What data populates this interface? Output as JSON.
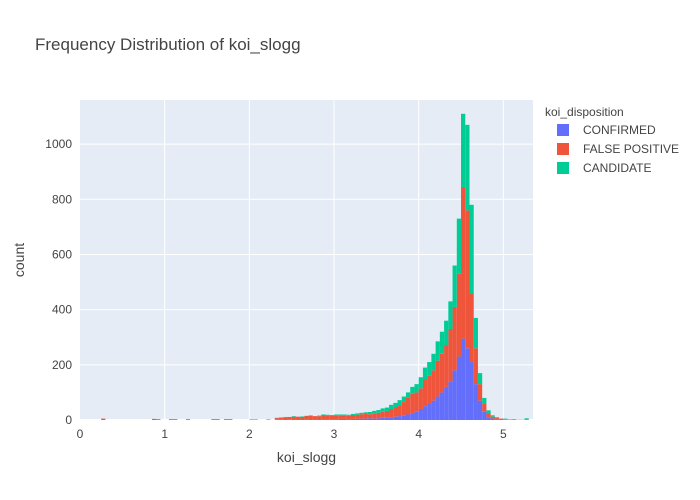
{
  "chart_data": {
    "type": "histogram",
    "title": "Frequency Distribution of koi_slogg",
    "xlabel": "koi_slogg",
    "ylabel": "count",
    "barmode": "stack",
    "xlim": [
      0,
      5.35
    ],
    "ylim": [
      0,
      1160
    ],
    "x_ticks": [
      0,
      1,
      2,
      3,
      4,
      5
    ],
    "y_ticks": [
      0,
      200,
      400,
      600,
      800,
      1000
    ],
    "bin_width": 0.05,
    "grid": true,
    "plot_background": "#e5ecf6",
    "legend": {
      "title": "koi_disposition",
      "placement": "right"
    },
    "series": [
      {
        "name": "CONFIRMED",
        "color": "#636efa",
        "points": [
          [
            2.3,
            1
          ],
          [
            2.35,
            1
          ],
          [
            2.4,
            2
          ],
          [
            2.45,
            1
          ],
          [
            2.5,
            2
          ],
          [
            2.55,
            2
          ],
          [
            2.6,
            2
          ],
          [
            2.65,
            3
          ],
          [
            2.7,
            2
          ],
          [
            2.75,
            3
          ],
          [
            2.8,
            2
          ],
          [
            2.85,
            3
          ],
          [
            2.9,
            3
          ],
          [
            2.95,
            3
          ],
          [
            3.0,
            3
          ],
          [
            3.05,
            4
          ],
          [
            3.1,
            4
          ],
          [
            3.15,
            3
          ],
          [
            3.2,
            4
          ],
          [
            3.25,
            4
          ],
          [
            3.3,
            5
          ],
          [
            3.35,
            5
          ],
          [
            3.4,
            6
          ],
          [
            3.45,
            5
          ],
          [
            3.5,
            6
          ],
          [
            3.55,
            8
          ],
          [
            3.6,
            8
          ],
          [
            3.65,
            10
          ],
          [
            3.7,
            12
          ],
          [
            3.75,
            14
          ],
          [
            3.8,
            15
          ],
          [
            3.85,
            20
          ],
          [
            3.9,
            25
          ],
          [
            3.95,
            30
          ],
          [
            4.0,
            40
          ],
          [
            4.05,
            50
          ],
          [
            4.1,
            60
          ],
          [
            4.15,
            70
          ],
          [
            4.2,
            85
          ],
          [
            4.25,
            100
          ],
          [
            4.3,
            120
          ],
          [
            4.35,
            140
          ],
          [
            4.4,
            180
          ],
          [
            4.45,
            230
          ],
          [
            4.5,
            295
          ],
          [
            4.55,
            260
          ],
          [
            4.6,
            210
          ],
          [
            4.65,
            130
          ],
          [
            4.7,
            70
          ],
          [
            4.75,
            30
          ],
          [
            4.8,
            10
          ],
          [
            4.85,
            5
          ],
          [
            4.9,
            3
          ],
          [
            4.95,
            2
          ],
          [
            5.0,
            1
          ],
          [
            5.1,
            1
          ]
        ]
      },
      {
        "name": "FALSE POSITIVE",
        "color": "#ef553b",
        "points": [
          [
            0.25,
            5
          ],
          [
            0.85,
            4
          ],
          [
            0.9,
            3
          ],
          [
            1.05,
            3
          ],
          [
            1.1,
            3
          ],
          [
            1.25,
            3
          ],
          [
            1.55,
            3
          ],
          [
            1.6,
            3
          ],
          [
            1.7,
            3
          ],
          [
            1.75,
            3
          ],
          [
            2.0,
            2
          ],
          [
            2.05,
            2
          ],
          [
            2.2,
            2
          ],
          [
            2.3,
            6
          ],
          [
            2.35,
            8
          ],
          [
            2.4,
            8
          ],
          [
            2.45,
            10
          ],
          [
            2.5,
            10
          ],
          [
            2.55,
            10
          ],
          [
            2.6,
            9
          ],
          [
            2.65,
            12
          ],
          [
            2.7,
            13
          ],
          [
            2.75,
            11
          ],
          [
            2.8,
            12
          ],
          [
            2.85,
            15
          ],
          [
            2.9,
            14
          ],
          [
            2.95,
            13
          ],
          [
            3.0,
            14
          ],
          [
            3.05,
            13
          ],
          [
            3.1,
            13
          ],
          [
            3.15,
            12
          ],
          [
            3.2,
            14
          ],
          [
            3.25,
            15
          ],
          [
            3.3,
            16
          ],
          [
            3.35,
            17
          ],
          [
            3.4,
            15
          ],
          [
            3.45,
            18
          ],
          [
            3.5,
            20
          ],
          [
            3.55,
            22
          ],
          [
            3.6,
            25
          ],
          [
            3.65,
            30
          ],
          [
            3.7,
            35
          ],
          [
            3.75,
            40
          ],
          [
            3.8,
            50
          ],
          [
            3.85,
            60
          ],
          [
            3.9,
            70
          ],
          [
            3.95,
            70
          ],
          [
            4.0,
            75
          ],
          [
            4.05,
            95
          ],
          [
            4.1,
            100
          ],
          [
            4.15,
            110
          ],
          [
            4.2,
            130
          ],
          [
            4.25,
            140
          ],
          [
            4.3,
            150
          ],
          [
            4.35,
            190
          ],
          [
            4.4,
            230
          ],
          [
            4.45,
            300
          ],
          [
            4.5,
            550
          ],
          [
            4.55,
            500
          ],
          [
            4.6,
            250
          ],
          [
            4.65,
            130
          ],
          [
            4.7,
            60
          ],
          [
            4.75,
            30
          ],
          [
            4.8,
            15
          ],
          [
            4.85,
            7
          ],
          [
            4.9,
            4
          ],
          [
            4.95,
            3
          ],
          [
            5.0,
            2
          ],
          [
            5.05,
            2
          ],
          [
            5.1,
            2
          ],
          [
            5.15,
            1
          ],
          [
            5.2,
            1
          ],
          [
            5.25,
            1
          ]
        ]
      },
      {
        "name": "CANDIDATE",
        "color": "#00cc96",
        "points": [
          [
            2.3,
            1
          ],
          [
            2.4,
            1
          ],
          [
            2.5,
            2
          ],
          [
            2.6,
            2
          ],
          [
            2.7,
            2
          ],
          [
            2.8,
            2
          ],
          [
            2.85,
            2
          ],
          [
            2.9,
            2
          ],
          [
            2.95,
            2
          ],
          [
            3.0,
            3
          ],
          [
            3.05,
            3
          ],
          [
            3.1,
            3
          ],
          [
            3.15,
            4
          ],
          [
            3.2,
            4
          ],
          [
            3.25,
            5
          ],
          [
            3.3,
            5
          ],
          [
            3.35,
            6
          ],
          [
            3.4,
            8
          ],
          [
            3.45,
            10
          ],
          [
            3.5,
            10
          ],
          [
            3.55,
            12
          ],
          [
            3.6,
            12
          ],
          [
            3.65,
            15
          ],
          [
            3.7,
            15
          ],
          [
            3.75,
            18
          ],
          [
            3.8,
            20
          ],
          [
            3.85,
            20
          ],
          [
            3.9,
            25
          ],
          [
            3.95,
            30
          ],
          [
            4.0,
            40
          ],
          [
            4.05,
            45
          ],
          [
            4.1,
            50
          ],
          [
            4.15,
            60
          ],
          [
            4.2,
            70
          ],
          [
            4.25,
            80
          ],
          [
            4.3,
            90
          ],
          [
            4.35,
            100
          ],
          [
            4.4,
            150
          ],
          [
            4.45,
            200
          ],
          [
            4.5,
            265
          ],
          [
            4.55,
            310
          ],
          [
            4.6,
            320
          ],
          [
            4.65,
            110
          ],
          [
            4.7,
            40
          ],
          [
            4.75,
            20
          ],
          [
            4.8,
            10
          ],
          [
            4.85,
            5
          ],
          [
            4.9,
            3
          ],
          [
            5.0,
            2
          ],
          [
            5.25,
            5
          ]
        ]
      }
    ]
  }
}
